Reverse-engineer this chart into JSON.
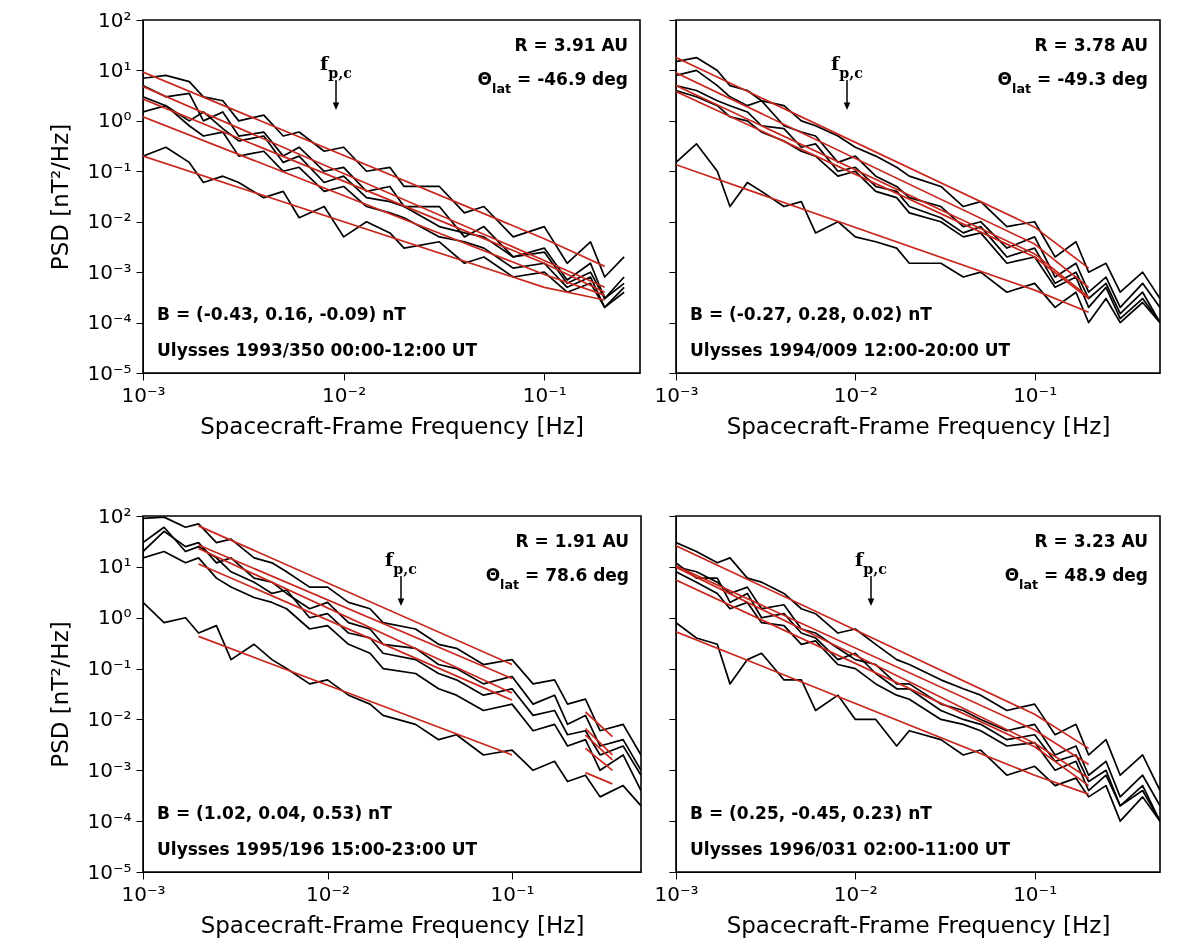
{
  "chart_data": [
    {
      "type": "line",
      "xlabel": "Spacecraft-Frame Frequency [Hz]",
      "ylabel": "PSD [nT²/Hz]",
      "log": "xy",
      "xlim": [
        0.001,
        0.3
      ],
      "ylim": [
        1e-05,
        100
      ],
      "xticks": [
        {
          "value": 0.001,
          "label": "10⁻³"
        },
        {
          "value": 0.01,
          "label": "10⁻²"
        },
        {
          "value": 0.1,
          "label": "10⁻¹"
        }
      ],
      "yticks": [
        {
          "value": 1e-05,
          "label": "10⁻⁵"
        },
        {
          "value": 0.0001,
          "label": "10⁻⁴"
        },
        {
          "value": 0.001,
          "label": "10⁻³"
        },
        {
          "value": 0.01,
          "label": "10⁻²"
        },
        {
          "value": 0.1,
          "label": "10⁻¹"
        },
        {
          "value": 1,
          "label": "10⁰"
        },
        {
          "value": 10,
          "label": "10¹"
        },
        {
          "value": 100,
          "label": "10²"
        }
      ],
      "x": [
        0.001,
        0.0013,
        0.0017,
        0.002,
        0.0025,
        0.003,
        0.004,
        0.005,
        0.006,
        0.008,
        0.01,
        0.013,
        0.017,
        0.02,
        0.03,
        0.04,
        0.05,
        0.07,
        0.1,
        0.13,
        0.17,
        0.2,
        0.25
      ],
      "series": [
        {
          "color": "#000000",
          "values": [
            7,
            8,
            6,
            3,
            2.5,
            1.0,
            1.3,
            0.5,
            0.6,
            0.25,
            0.3,
            0.1,
            0.12,
            0.05,
            0.05,
            0.015,
            0.02,
            0.005,
            0.008,
            0.0015,
            0.004,
            0.0008,
            0.002
          ]
        },
        {
          "color": "#000000",
          "values": [
            5,
            3,
            3.5,
            1,
            1.5,
            0.5,
            0.6,
            0.2,
            0.3,
            0.1,
            0.12,
            0.04,
            0.05,
            0.02,
            0.02,
            0.005,
            0.008,
            0.002,
            0.003,
            0.0007,
            0.0015,
            0.0003,
            0.0008
          ]
        },
        {
          "color": "#000000",
          "values": [
            3,
            2,
            1,
            1.5,
            0.7,
            0.4,
            0.5,
            0.15,
            0.2,
            0.06,
            0.08,
            0.03,
            0.025,
            0.02,
            0.008,
            0.006,
            0.005,
            0.002,
            0.0025,
            0.0006,
            0.001,
            0.0003,
            0.0006
          ]
        },
        {
          "color": "#000000",
          "values": [
            1.5,
            2,
            0.8,
            0.5,
            0.6,
            0.2,
            0.25,
            0.1,
            0.12,
            0.04,
            0.05,
            0.02,
            0.015,
            0.012,
            0.005,
            0.004,
            0.003,
            0.0012,
            0.0015,
            0.0005,
            0.0008,
            0.0002,
            0.0005
          ]
        },
        {
          "color": "#000000",
          "values": [
            0.2,
            0.3,
            0.15,
            0.06,
            0.08,
            0.06,
            0.03,
            0.04,
            0.012,
            0.02,
            0.005,
            0.01,
            0.006,
            0.003,
            0.004,
            0.0015,
            0.002,
            0.0008,
            0.001,
            0.0004,
            0.0006,
            0.0002,
            0.0004
          ]
        },
        {
          "color": "#c8281e",
          "x": [
            0.001,
            0.1,
            0.2
          ],
          "values": [
            9.3,
            0.0046,
            0.0013
          ]
        },
        {
          "color": "#c8281e",
          "x": [
            0.001,
            0.1,
            0.2
          ],
          "values": [
            4.8,
            0.0017,
            0.0005
          ]
        },
        {
          "color": "#c8281e",
          "x": [
            0.001,
            0.1,
            0.2
          ],
          "values": [
            2.7,
            0.0015,
            0.0004
          ]
        },
        {
          "color": "#c8281e",
          "x": [
            0.001,
            0.1,
            0.2
          ],
          "values": [
            1.2,
            0.0009,
            0.00035
          ]
        },
        {
          "color": "#c8281e",
          "x": [
            0.001,
            0.1,
            0.2
          ],
          "values": [
            0.2,
            0.0005,
            0.00028
          ]
        }
      ],
      "annotations": [
        "R = 3.91 AU",
        "Θ$_{lat}$ = -46.9 deg",
        "B = (-0.43, 0.16, -0.09) nT",
        "Ulysses 1993/350 00:00-12:00 UT",
        "f$_{p,c}$"
      ]
    },
    {
      "type": "line",
      "xlabel": "Spacecraft-Frame Frequency [Hz]",
      "log": "xy",
      "tick_labels": "x",
      "xlim": [
        0.001,
        0.5
      ],
      "ylim": [
        1e-05,
        100
      ],
      "xticks": [
        {
          "value": 0.001,
          "label": "10⁻³"
        },
        {
          "value": 0.01,
          "label": "10⁻²"
        },
        {
          "value": 0.1,
          "label": "10⁻¹"
        }
      ],
      "yticks": [
        1e-05,
        0.0001,
        0.001,
        0.01,
        0.1,
        1,
        10,
        100
      ],
      "x": [
        0.001,
        0.0013,
        0.0017,
        0.002,
        0.0025,
        0.003,
        0.004,
        0.005,
        0.006,
        0.008,
        0.01,
        0.013,
        0.017,
        0.02,
        0.03,
        0.04,
        0.05,
        0.07,
        0.1,
        0.13,
        0.17,
        0.2,
        0.25,
        0.3,
        0.4,
        0.5
      ],
      "series": [
        {
          "color": "#000000",
          "values": [
            15,
            18,
            10,
            5,
            4,
            2.5,
            2,
            1,
            0.8,
            0.5,
            0.3,
            0.2,
            0.12,
            0.08,
            0.05,
            0.02,
            0.025,
            0.008,
            0.01,
            0.002,
            0.004,
            0.001,
            0.0015,
            0.0004,
            0.001,
            0.0003
          ]
        },
        {
          "color": "#000000",
          "values": [
            8,
            10,
            5,
            3,
            2,
            2.5,
            0.8,
            0.6,
            0.5,
            0.15,
            0.2,
            0.08,
            0.05,
            0.03,
            0.02,
            0.008,
            0.01,
            0.003,
            0.005,
            0.0008,
            0.0015,
            0.0004,
            0.0008,
            0.0002,
            0.0006,
            0.0002
          ]
        },
        {
          "color": "#000000",
          "values": [
            5,
            4,
            2.5,
            2,
            1.5,
            0.8,
            0.7,
            0.3,
            0.35,
            0.1,
            0.12,
            0.05,
            0.04,
            0.02,
            0.012,
            0.006,
            0.008,
            0.002,
            0.003,
            0.0006,
            0.001,
            0.0003,
            0.0006,
            0.00015,
            0.0004,
            0.0001
          ]
        },
        {
          "color": "#000000",
          "values": [
            4,
            3,
            2,
            1.2,
            1.0,
            0.6,
            0.4,
            0.25,
            0.2,
            0.08,
            0.1,
            0.04,
            0.03,
            0.015,
            0.01,
            0.005,
            0.006,
            0.0015,
            0.002,
            0.0005,
            0.0008,
            0.0002,
            0.0005,
            0.00012,
            0.0003,
            0.0001
          ]
        },
        {
          "color": "#000000",
          "values": [
            0.15,
            0.35,
            0.1,
            0.02,
            0.06,
            0.04,
            0.02,
            0.025,
            0.006,
            0.01,
            0.005,
            0.004,
            0.003,
            0.0015,
            0.0015,
            0.0008,
            0.001,
            0.0004,
            0.0006,
            0.0002,
            0.0004,
            0.0001,
            0.0003,
            0.0001,
            0.00025,
            0.0001
          ]
        },
        {
          "color": "#c8281e",
          "x": [
            0.001,
            0.1,
            0.2
          ],
          "values": [
            18,
            0.0078,
            0.0012
          ]
        },
        {
          "color": "#c8281e",
          "x": [
            0.001,
            0.1,
            0.2
          ],
          "values": [
            9,
            0.0036,
            0.0005
          ]
        },
        {
          "color": "#c8281e",
          "x": [
            0.001,
            0.1,
            0.2
          ],
          "values": [
            5,
            0.0023,
            0.00032
          ]
        },
        {
          "color": "#c8281e",
          "x": [
            0.001,
            0.1,
            0.2
          ],
          "values": [
            3.8,
            0.002,
            0.0003
          ]
        },
        {
          "color": "#c8281e",
          "x": [
            0.001,
            0.1,
            0.2
          ],
          "values": [
            0.135,
            0.00044,
            0.00016
          ]
        }
      ],
      "annotations": [
        "R = 3.78 AU",
        "Θ$_{lat}$ = -49.3 deg",
        "B = (-0.27, 0.28, 0.02) nT",
        "Ulysses 1994/009 12:00-20:00 UT",
        "f$_{p,c}$"
      ]
    },
    {
      "type": "line",
      "xlabel": "Spacecraft-Frame Frequency [Hz]",
      "ylabel": "PSD [nT²/Hz]",
      "log": "xy",
      "xlim": [
        0.001,
        0.5
      ],
      "ylim": [
        1e-05,
        100
      ],
      "xticks": [
        {
          "value": 0.001,
          "label": "10⁻³"
        },
        {
          "value": 0.01,
          "label": "10⁻²"
        },
        {
          "value": 0.1,
          "label": "10⁻¹"
        }
      ],
      "yticks": [
        {
          "value": 1e-05,
          "label": "10⁻⁵"
        },
        {
          "value": 0.0001,
          "label": "10⁻⁴"
        },
        {
          "value": 0.001,
          "label": "10⁻³"
        },
        {
          "value": 0.01,
          "label": "10⁻²"
        },
        {
          "value": 0.1,
          "label": "10⁻¹"
        },
        {
          "value": 1,
          "label": "10⁰"
        },
        {
          "value": 10,
          "label": "10¹"
        },
        {
          "value": 100,
          "label": "10²"
        }
      ],
      "x": [
        0.001,
        0.0013,
        0.0017,
        0.002,
        0.0025,
        0.003,
        0.004,
        0.005,
        0.006,
        0.008,
        0.01,
        0.013,
        0.017,
        0.02,
        0.03,
        0.04,
        0.05,
        0.07,
        0.1,
        0.13,
        0.17,
        0.2,
        0.25,
        0.3,
        0.4,
        0.5
      ],
      "series": [
        {
          "color": "#000000",
          "values": [
            90,
            95,
            60,
            70,
            30,
            35,
            15,
            12,
            8,
            4,
            4,
            2,
            1.5,
            0.8,
            0.6,
            0.3,
            0.25,
            0.12,
            0.15,
            0.05,
            0.06,
            0.02,
            0.025,
            0.006,
            0.008,
            0.002
          ]
        },
        {
          "color": "#000000",
          "values": [
            20,
            50,
            25,
            30,
            12,
            15,
            6,
            5,
            3,
            1.5,
            2,
            0.8,
            0.6,
            0.3,
            0.25,
            0.12,
            0.1,
            0.05,
            0.07,
            0.02,
            0.03,
            0.008,
            0.012,
            0.003,
            0.004,
            0.001
          ]
        },
        {
          "color": "#000000",
          "values": [
            30,
            60,
            20,
            25,
            15,
            8,
            5,
            3,
            3.5,
            1,
            1.2,
            0.5,
            0.4,
            0.2,
            0.15,
            0.08,
            0.06,
            0.03,
            0.04,
            0.012,
            0.015,
            0.005,
            0.006,
            0.002,
            0.003,
            0.0008
          ]
        },
        {
          "color": "#000000",
          "values": [
            15,
            20,
            12,
            15,
            6,
            4,
            2.5,
            2,
            1.5,
            0.6,
            0.7,
            0.3,
            0.2,
            0.1,
            0.08,
            0.04,
            0.03,
            0.015,
            0.02,
            0.006,
            0.008,
            0.003,
            0.004,
            0.001,
            0.002,
            0.0004
          ]
        },
        {
          "color": "#000000",
          "values": [
            2,
            0.8,
            1,
            0.5,
            0.7,
            0.15,
            0.3,
            0.15,
            0.1,
            0.05,
            0.06,
            0.03,
            0.02,
            0.012,
            0.008,
            0.004,
            0.005,
            0.002,
            0.0025,
            0.001,
            0.0015,
            0.0006,
            0.0008,
            0.0003,
            0.0005,
            0.0002
          ]
        },
        {
          "color": "#c8281e",
          "x": [
            0.002,
            0.1
          ],
          "values": [
            64,
            0.12
          ]
        },
        {
          "color": "#c8281e",
          "x": [
            0.002,
            0.1
          ],
          "values": [
            27,
            0.064
          ]
        },
        {
          "color": "#c8281e",
          "x": [
            0.002,
            0.1
          ],
          "values": [
            23,
            0.033
          ]
        },
        {
          "color": "#c8281e",
          "x": [
            0.002,
            0.1
          ],
          "values": [
            11.4,
            0.024
          ]
        },
        {
          "color": "#c8281e",
          "x": [
            0.002,
            0.1
          ],
          "values": [
            0.43,
            0.002
          ]
        },
        {
          "color": "#c8281e",
          "x": [
            0.25,
            0.35
          ],
          "values": [
            0.014,
            0.0046
          ]
        },
        {
          "color": "#c8281e",
          "x": [
            0.25,
            0.35
          ],
          "values": [
            0.0066,
            0.002
          ]
        },
        {
          "color": "#c8281e",
          "x": [
            0.25,
            0.35
          ],
          "values": [
            0.0049,
            0.0016
          ]
        },
        {
          "color": "#c8281e",
          "x": [
            0.25,
            0.35
          ],
          "values": [
            0.0027,
            0.001
          ]
        },
        {
          "color": "#c8281e",
          "x": [
            0.25,
            0.35
          ],
          "values": [
            0.0009,
            0.00054
          ]
        }
      ],
      "annotations": [
        "R = 1.91 AU",
        "Θ$_{lat}$ = 78.6 deg",
        "B = (1.02, 0.04, 0.53) nT",
        "Ulysses 1995/196 15:00-23:00 UT",
        "f$_{p,c}$"
      ]
    },
    {
      "type": "line",
      "xlabel": "Spacecraft-Frame Frequency [Hz]",
      "log": "xy",
      "tick_labels": "x",
      "xlim": [
        0.001,
        0.5
      ],
      "ylim": [
        1e-05,
        100
      ],
      "xticks": [
        {
          "value": 0.001,
          "label": "10⁻³"
        },
        {
          "value": 0.01,
          "label": "10⁻²"
        },
        {
          "value": 0.1,
          "label": "10⁻¹"
        }
      ],
      "yticks": [
        1e-05,
        0.0001,
        0.001,
        0.01,
        0.1,
        1,
        10,
        100
      ],
      "x": [
        0.001,
        0.0013,
        0.0017,
        0.002,
        0.0025,
        0.003,
        0.004,
        0.005,
        0.006,
        0.008,
        0.01,
        0.013,
        0.017,
        0.02,
        0.03,
        0.04,
        0.05,
        0.07,
        0.1,
        0.13,
        0.17,
        0.2,
        0.25,
        0.3,
        0.4,
        0.5
      ],
      "series": [
        {
          "color": "#000000",
          "values": [
            30,
            20,
            12,
            15,
            6,
            5,
            3,
            1.5,
            1.2,
            0.5,
            0.6,
            0.3,
            0.15,
            0.12,
            0.06,
            0.04,
            0.03,
            0.015,
            0.02,
            0.005,
            0.008,
            0.002,
            0.004,
            0.0008,
            0.002,
            0.0004
          ]
        },
        {
          "color": "#000000",
          "values": [
            10,
            8,
            5,
            3,
            4,
            1.5,
            1.8,
            0.6,
            0.5,
            0.25,
            0.15,
            0.12,
            0.05,
            0.05,
            0.02,
            0.015,
            0.01,
            0.006,
            0.008,
            0.002,
            0.003,
            0.0008,
            0.0015,
            0.0003,
            0.0008,
            0.0002
          ]
        },
        {
          "color": "#000000",
          "values": [
            12,
            6,
            6,
            2,
            3,
            1,
            1.2,
            0.5,
            0.4,
            0.15,
            0.2,
            0.08,
            0.04,
            0.04,
            0.015,
            0.01,
            0.008,
            0.004,
            0.005,
            0.0015,
            0.002,
            0.0006,
            0.001,
            0.0002,
            0.0005,
            0.0001
          ]
        },
        {
          "color": "#000000",
          "values": [
            8,
            5,
            3,
            1.5,
            2,
            0.8,
            0.7,
            0.3,
            0.35,
            0.12,
            0.1,
            0.05,
            0.03,
            0.025,
            0.01,
            0.008,
            0.006,
            0.003,
            0.0035,
            0.001,
            0.0015,
            0.0004,
            0.0008,
            0.0002,
            0.0004,
            0.0001
          ]
        },
        {
          "color": "#000000",
          "values": [
            0.8,
            0.4,
            0.3,
            0.05,
            0.15,
            0.2,
            0.06,
            0.06,
            0.015,
            0.03,
            0.01,
            0.01,
            0.003,
            0.006,
            0.004,
            0.002,
            0.0025,
            0.0008,
            0.0012,
            0.0005,
            0.0007,
            0.0003,
            0.0005,
            0.0001,
            0.0003,
            0.0001
          ]
        },
        {
          "color": "#c8281e",
          "x": [
            0.001,
            0.1,
            0.2
          ],
          "values": [
            26,
            0.0126,
            0.0027
          ]
        },
        {
          "color": "#c8281e",
          "x": [
            0.001,
            0.1,
            0.2
          ],
          "values": [
            10.4,
            0.0062,
            0.0013
          ]
        },
        {
          "color": "#c8281e",
          "x": [
            0.001,
            0.1,
            0.2
          ],
          "values": [
            9.8,
            0.0034,
            0.0007
          ]
        },
        {
          "color": "#c8281e",
          "x": [
            0.001,
            0.1,
            0.2
          ],
          "values": [
            5.5,
            0.0029,
            0.0005
          ]
        },
        {
          "color": "#c8281e",
          "x": [
            0.001,
            0.1,
            0.2
          ],
          "values": [
            0.53,
            0.0008,
            0.00034
          ]
        }
      ],
      "annotations": [
        "R = 3.23 AU",
        "Θ$_{lat}$ = 48.9 deg",
        "B = (0.25, -0.45, 0.23) nT",
        "Ulysses 1996/031 02:00-11:00 UT",
        "f$_{p,c}$"
      ]
    }
  ]
}
